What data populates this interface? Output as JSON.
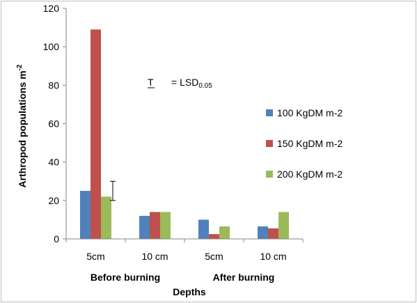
{
  "chart_data": {
    "type": "bar",
    "categories": [
      "5cm",
      "10 cm",
      "5cm",
      "10 cm"
    ],
    "groups": [
      "Before burning",
      "After burning"
    ],
    "xlabel": "Depths",
    "ylabel": "Arthropod populations m",
    "ylabel_sup": "-2",
    "ylim": [
      0,
      120
    ],
    "yticks": [
      0,
      20,
      40,
      60,
      80,
      100,
      120
    ],
    "grid": false,
    "legend_position": "right",
    "series": [
      {
        "name": "100 KgDM m-2",
        "color": "#4f81bd",
        "values": [
          25,
          12,
          10,
          6.5
        ]
      },
      {
        "name": "150 KgDM m-2",
        "color": "#c0504d",
        "values": [
          109,
          14,
          2.5,
          5.5
        ]
      },
      {
        "name": "200 KgDM m-2",
        "color": "#9bbb59",
        "values": [
          22,
          14,
          6.5,
          14
        ]
      }
    ],
    "lsd_bar": {
      "low": 20,
      "high": 30,
      "after_category": 0
    },
    "annotation": {
      "symbol": "T",
      "text": "= LSD",
      "subscript": "0.05"
    }
  }
}
